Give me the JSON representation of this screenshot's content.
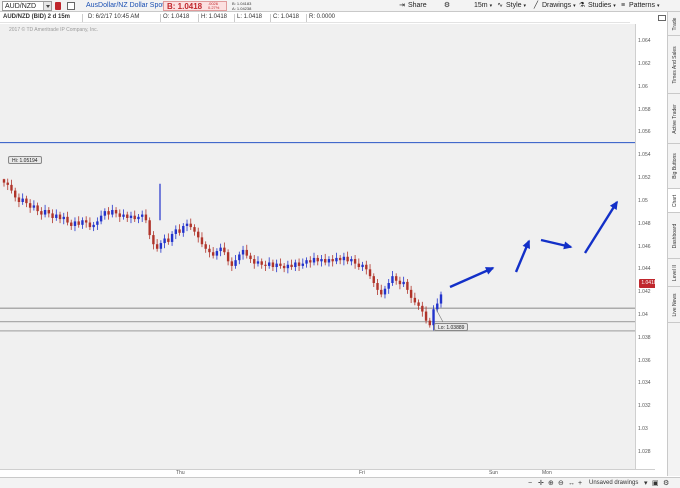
{
  "toolbar": {
    "symbol": "AUD/NZD",
    "description": "AusDollar/NZ Dollar Spot",
    "bid": "B: 1.0418",
    "bid_small": "1",
    "change": ".0026",
    "change_pct": "0.27%",
    "bid_ask_b": "B: 1.04183",
    "bid_ask_a": "A: 1.04238",
    "share_label": "Share",
    "interval_label": "15m",
    "style_label": "Style",
    "drawings_label": "Drawings",
    "studies_label": "Studies",
    "patterns_label": "Patterns"
  },
  "info": {
    "title": "AUD/NZD (BID) 2 d 15m",
    "date": "D: 6/2/17 10:45 AM",
    "open": "O: 1.0418",
    "high": "H: 1.0418",
    "low": "L: 1.0418",
    "close": "C: 1.0418",
    "range": "R: 0.0000"
  },
  "chart": {
    "copyright": "2017 © TD Ameritrade IP Company, Inc.",
    "hi_label": "Hi: 1.05194",
    "lo_label": "Lo: 1.03889",
    "last_price": "1.0418",
    "last_price_small": "1"
  },
  "chart_data": {
    "type": "candlestick",
    "title": "",
    "y_ticks": [
      "1.064",
      "1.062",
      "1.06",
      "1.058",
      "1.056",
      "1.054",
      "1.052",
      "1.05",
      "1.048",
      "1.046",
      "1.044",
      "1.042",
      "1.04",
      "1.038",
      "1.036",
      "1.034",
      "1.032",
      "1.03",
      "1.028"
    ],
    "ylim": [
      1.0265,
      1.0655
    ],
    "x_ticks": [
      "Thu",
      "Fri",
      "Sun",
      "Mon"
    ],
    "hi": 1.05194,
    "lo": 1.03889,
    "last": 1.0418,
    "horizontal_lines": [
      {
        "price": 1.0551,
        "color": "#2a56c6"
      },
      {
        "price": 1.0406,
        "color": "#666666"
      },
      {
        "price": 1.0394,
        "color": "#666666"
      },
      {
        "price": 1.0386,
        "color": "#666666"
      }
    ],
    "closes": [
      1.0516,
      1.0514,
      1.0509,
      1.0503,
      1.0499,
      1.0502,
      1.0498,
      1.0494,
      1.0496,
      1.0491,
      1.0488,
      1.0492,
      1.0489,
      1.0485,
      1.0488,
      1.0484,
      1.0486,
      1.0481,
      1.0478,
      1.0482,
      1.0479,
      1.0483,
      1.0481,
      1.0477,
      1.0479,
      1.0482,
      1.0487,
      1.0491,
      1.0488,
      1.0492,
      1.0489,
      1.0486,
      1.0488,
      1.0485,
      1.0487,
      1.0484,
      1.0486,
      1.0488,
      1.0483,
      1.047,
      1.0462,
      1.0458,
      1.0463,
      1.0467,
      1.0464,
      1.0471,
      1.0475,
      1.0472,
      1.0478,
      1.048,
      1.0477,
      1.0473,
      1.0468,
      1.0462,
      1.0458,
      1.0455,
      1.0452,
      1.0456,
      1.0459,
      1.0455,
      1.0447,
      1.0443,
      1.0448,
      1.0453,
      1.0457,
      1.0452,
      1.0449,
      1.0445,
      1.0447,
      1.0444,
      1.0443,
      1.0446,
      1.0442,
      1.0445,
      1.0443,
      1.0441,
      1.0444,
      1.0442,
      1.0446,
      1.0443,
      1.0445,
      1.0448,
      1.0446,
      1.045,
      1.0447,
      1.0449,
      1.0446,
      1.0449,
      1.0447,
      1.045,
      1.0448,
      1.0451,
      1.0447,
      1.0449,
      1.0445,
      1.0442,
      1.0444,
      1.044,
      1.0434,
      1.0428,
      1.0422,
      1.0418,
      1.0423,
      1.0428,
      1.0434,
      1.043,
      1.0427,
      1.0429,
      1.0422,
      1.0415,
      1.0411,
      1.0408,
      1.0403,
      1.0395,
      1.0391,
      1.0405,
      1.041,
      1.0418
    ],
    "arrows": [
      {
        "from": [
          450,
          287
        ],
        "to": [
          493,
          268
        ]
      },
      {
        "from": [
          516,
          272
        ],
        "to": [
          529,
          241
        ]
      },
      {
        "from": [
          541,
          240
        ],
        "to": [
          571,
          247
        ]
      },
      {
        "from": [
          585,
          253
        ],
        "to": [
          617,
          202
        ]
      }
    ]
  },
  "side_tabs": [
    "Trade",
    "Times And Sales",
    "Active Trader",
    "Big Buttons",
    "Chart",
    "Dashboard",
    "Level II",
    "Live News"
  ],
  "bottom": {
    "unsaved": "Unsaved drawings"
  }
}
